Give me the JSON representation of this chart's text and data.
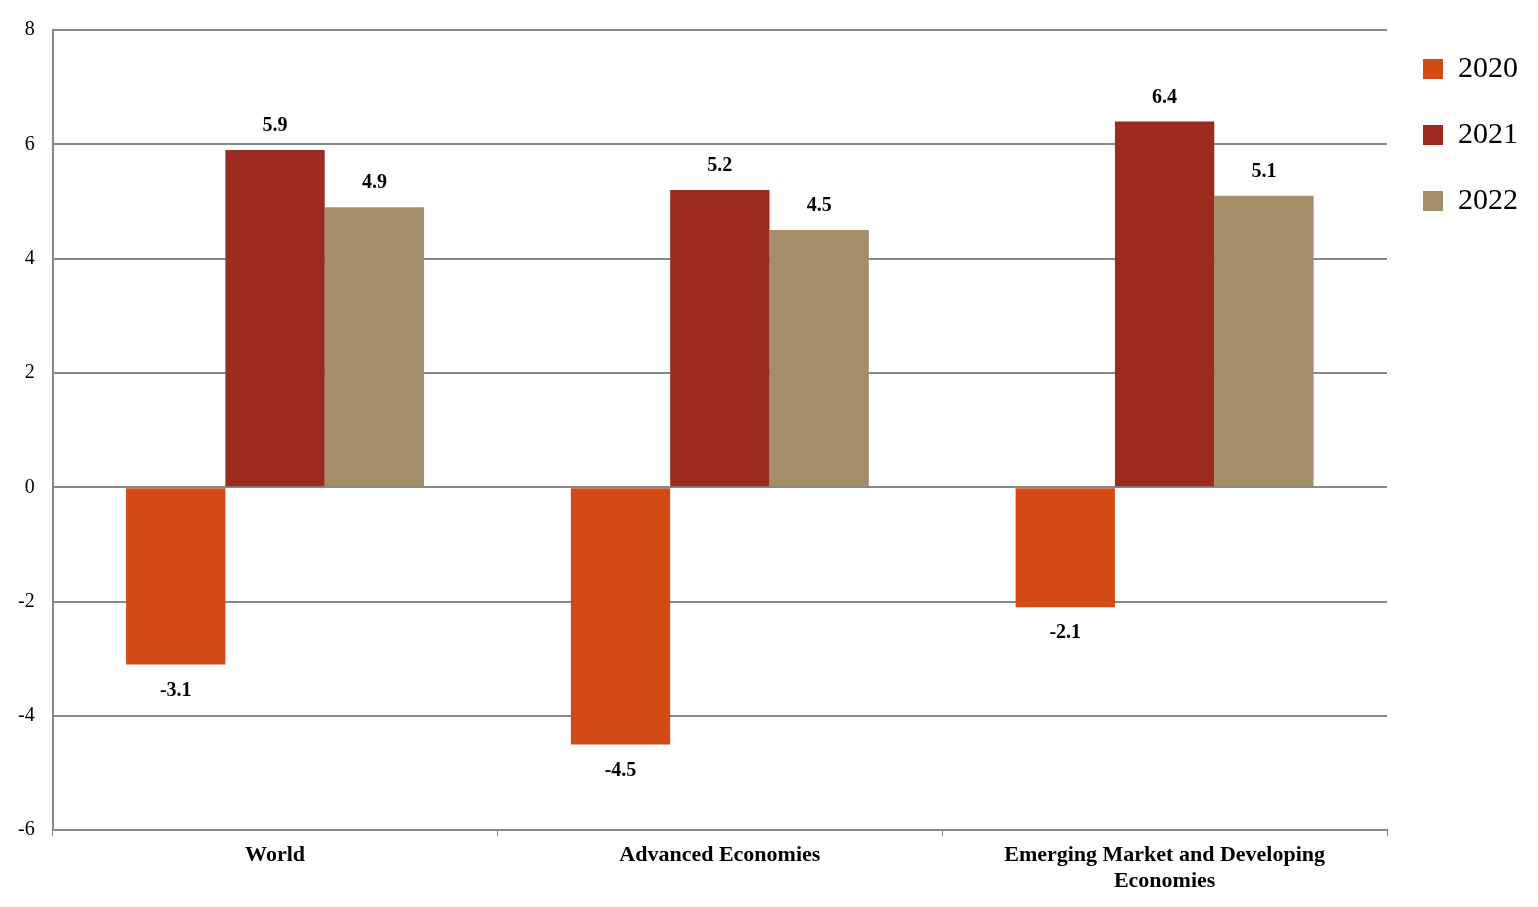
{
  "chart_data": {
    "type": "bar",
    "categories": [
      "World",
      "Advanced Economies",
      "Emerging Market and Developing Economies"
    ],
    "series": [
      {
        "name": "2020",
        "color": "#d34a17",
        "values": [
          -3.1,
          -4.5,
          -2.1
        ]
      },
      {
        "name": "2021",
        "color": "#9a2b1e",
        "values": [
          5.9,
          5.2,
          6.4
        ]
      },
      {
        "name": "2022",
        "color": "#a48e6a",
        "values": [
          4.9,
          4.5,
          5.1
        ]
      }
    ],
    "ylim": [
      -6,
      8
    ],
    "yticks": [
      -6,
      -4,
      -2,
      0,
      2,
      4,
      6,
      8
    ],
    "grid": "y",
    "legend": "top right",
    "data_labels": true
  }
}
